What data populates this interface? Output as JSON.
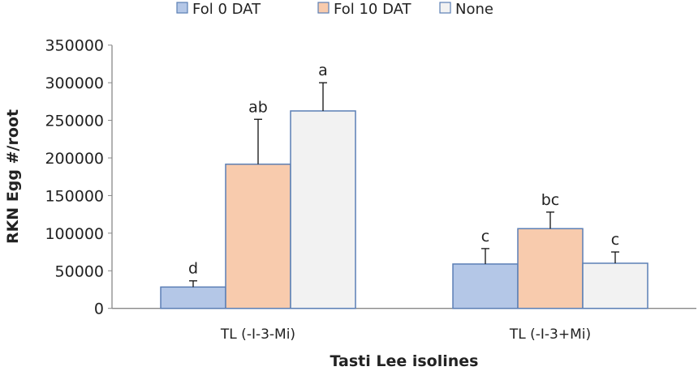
{
  "chart_data": {
    "type": "bar",
    "title": "",
    "xlabel": "Tasti Lee isolines",
    "ylabel": "RKN Egg #/root",
    "ylim": [
      0,
      350000
    ],
    "yticks": [
      "0",
      "50000",
      "100000",
      "150000",
      "200000",
      "250000",
      "300000",
      "350000"
    ],
    "ytick_values": [
      0,
      50000,
      100000,
      150000,
      200000,
      250000,
      300000,
      350000
    ],
    "categories": [
      "TL (-I-3-Mi)",
      "TL (-I-3+Mi)"
    ],
    "legend_position": "top",
    "grid": false,
    "series": [
      {
        "name": "Fol 0 DAT",
        "color": "#b4c7e7",
        "values": [
          28400,
          59000
        ],
        "error_upper": [
          36600,
          79500
        ],
        "letters": [
          "d",
          "c"
        ]
      },
      {
        "name": "Fol 10 DAT",
        "color": "#f8cbad",
        "values": [
          191700,
          106000
        ],
        "error_upper": [
          251400,
          128000
        ],
        "letters": [
          "ab",
          "bc"
        ]
      },
      {
        "name": "None",
        "color": "#f2f2f2",
        "values": [
          262500,
          60000
        ],
        "error_upper": [
          300000,
          75000
        ],
        "letters": [
          "a",
          "c"
        ]
      }
    ],
    "bar_edge_color": "#5b7fb5"
  }
}
